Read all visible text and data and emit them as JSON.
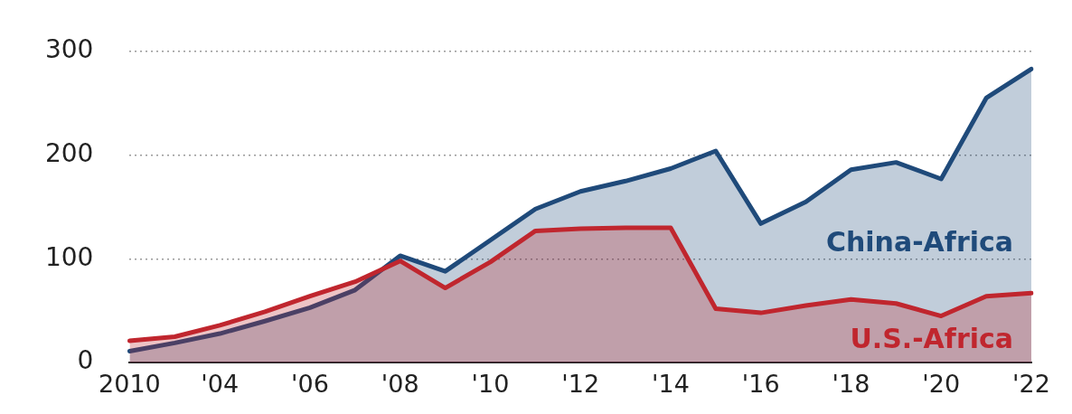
{
  "chart_data": {
    "type": "area",
    "categories": [
      "2010",
      null,
      "'04",
      null,
      "'06",
      null,
      "'08",
      null,
      "'10",
      null,
      "'12",
      null,
      "'14",
      null,
      "'16",
      null,
      "'18",
      null,
      "'20",
      null,
      "'22"
    ],
    "series": [
      {
        "name": "China-Africa",
        "color": "#1f4a7a",
        "values": [
          11,
          19,
          28,
          40,
          53,
          70,
          103,
          88,
          118,
          148,
          165,
          175,
          187,
          204,
          134,
          155,
          186,
          193,
          177,
          255,
          283
        ]
      },
      {
        "name": "U.S.-Africa",
        "color": "#c0262e",
        "values": [
          21,
          25,
          36,
          49,
          64,
          78,
          98,
          72,
          97,
          127,
          129,
          130,
          130,
          52,
          48,
          55,
          61,
          57,
          45,
          64,
          67
        ]
      }
    ],
    "ylim": [
      0,
      300
    ],
    "yticks": [
      0,
      100,
      200,
      300
    ],
    "grid": "y",
    "legend": false
  }
}
